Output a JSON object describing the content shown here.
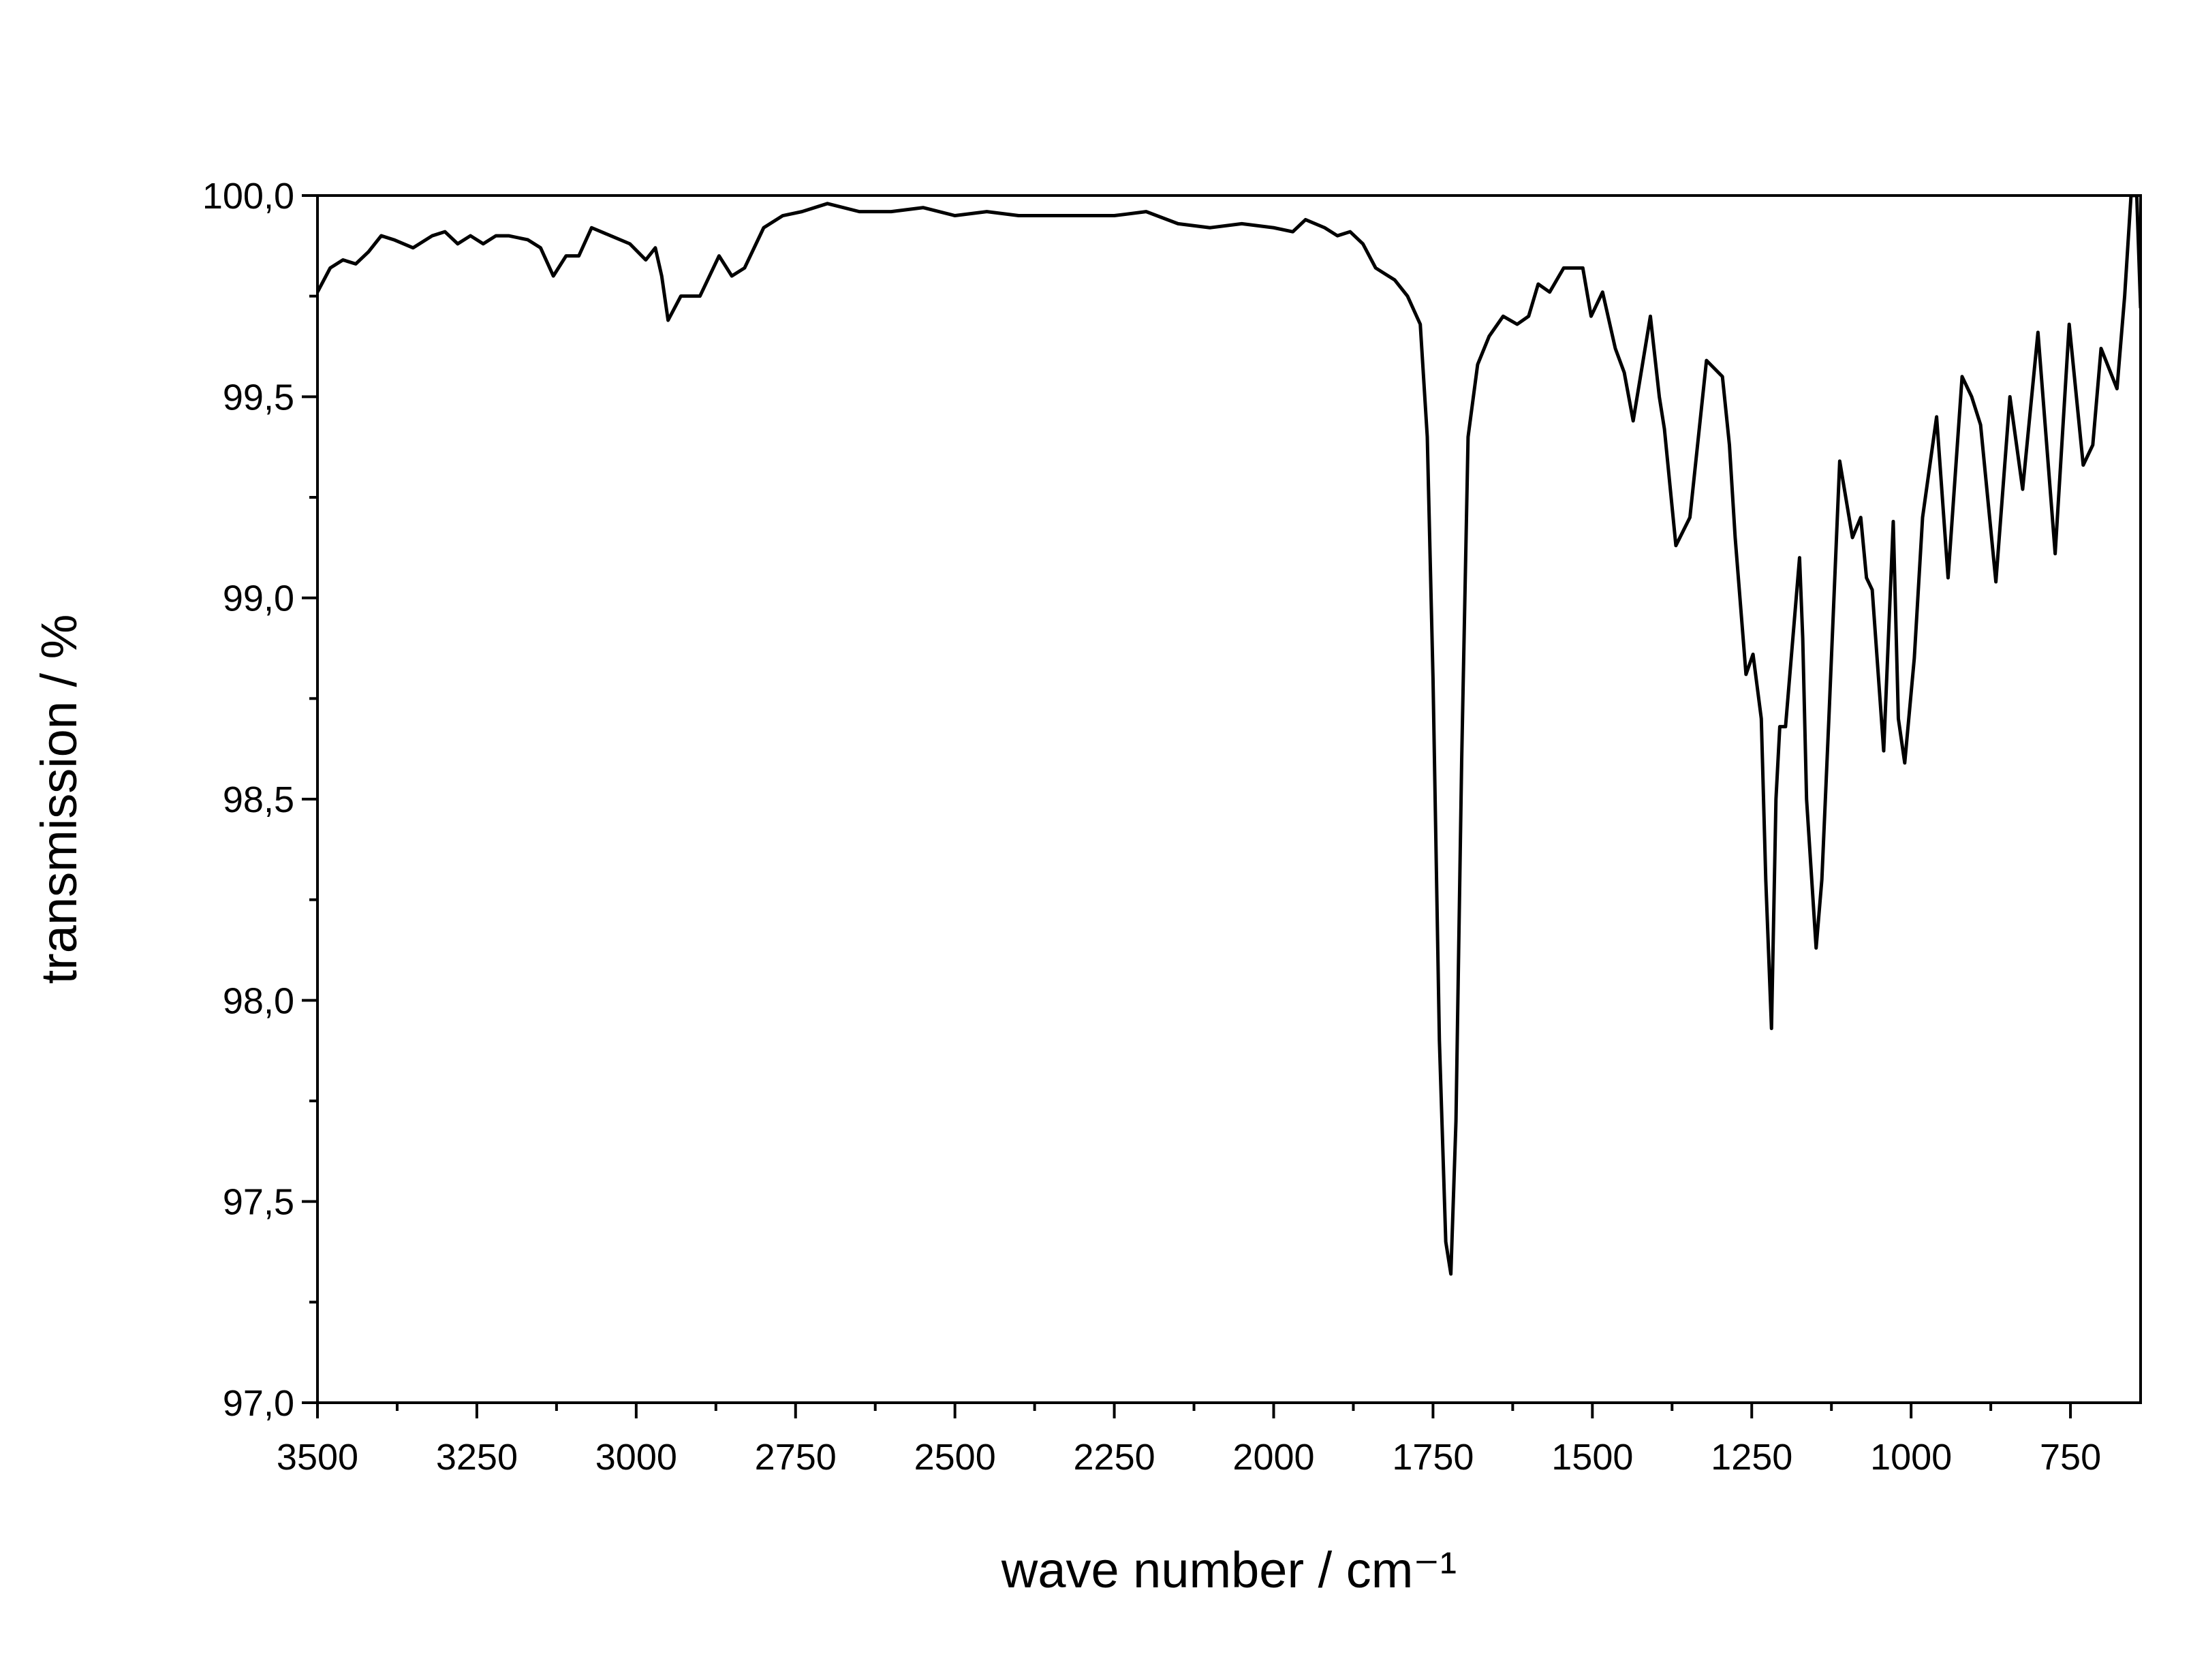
{
  "chart_data": {
    "type": "line",
    "x_label": "wave number / cm⁻¹",
    "y_label": "transmission / %",
    "xlim": [
      3500,
      640
    ],
    "ylim": [
      97,
      100
    ],
    "xticks": [
      3500,
      3250,
      3000,
      2750,
      2500,
      2250,
      2000,
      1750,
      1500,
      1250,
      1000,
      750
    ],
    "xticks_minor": [
      3375,
      3125,
      2875,
      2625,
      2375,
      2125,
      1875,
      1625,
      1375,
      1125,
      875
    ],
    "yticks": [
      {
        "value": 97,
        "label": "97,0"
      },
      {
        "value": 97.5,
        "label": "97,5"
      },
      {
        "value": 98,
        "label": "98,0"
      },
      {
        "value": 98.5,
        "label": "98,5"
      },
      {
        "value": 99,
        "label": "99,0"
      },
      {
        "value": 99.5,
        "label": "99,5"
      },
      {
        "value": 100,
        "label": "100,0"
      }
    ],
    "yticks_minor": [
      97.25,
      97.75,
      98.25,
      98.75,
      99.25,
      99.75
    ],
    "series": [
      {
        "color": "#000000",
        "x": [
          3500,
          3480,
          3460,
          3440,
          3420,
          3400,
          3380,
          3350,
          3320,
          3300,
          3280,
          3260,
          3240,
          3220,
          3200,
          3170,
          3150,
          3130,
          3110,
          3090,
          3070,
          3040,
          3010,
          2985,
          2970,
          2960,
          2950,
          2930,
          2900,
          2870,
          2850,
          2830,
          2800,
          2770,
          2740,
          2700,
          2650,
          2600,
          2550,
          2500,
          2450,
          2400,
          2350,
          2300,
          2250,
          2200,
          2150,
          2100,
          2050,
          2000,
          1970,
          1950,
          1920,
          1900,
          1880,
          1860,
          1840,
          1810,
          1790,
          1770,
          1759,
          1750,
          1740,
          1730,
          1722,
          1714,
          1705,
          1695,
          1680,
          1662,
          1640,
          1618,
          1600,
          1585,
          1567,
          1545,
          1515,
          1502,
          1484,
          1464,
          1450,
          1436,
          1409,
          1395,
          1387,
          1369,
          1347,
          1321,
          1296,
          1285,
          1276,
          1259,
          1248,
          1235,
          1228,
          1219,
          1212,
          1206,
          1197,
          1175,
          1170,
          1164,
          1149,
          1140,
          1129,
          1112,
          1092,
          1079,
          1070,
          1061,
          1043,
          1028,
          1020,
          1010,
          995,
          982,
          960,
          942,
          920,
          905,
          891,
          867,
          845,
          825,
          801,
          774,
          752,
          730,
          715,
          702,
          677,
          665,
          655,
          646,
          640
        ],
        "values": [
          99.76,
          99.82,
          99.84,
          99.83,
          99.86,
          99.9,
          99.89,
          99.87,
          99.9,
          99.91,
          99.88,
          99.9,
          99.88,
          99.9,
          99.9,
          99.89,
          99.87,
          99.8,
          99.85,
          99.85,
          99.92,
          99.9,
          99.88,
          99.84,
          99.87,
          99.8,
          99.69,
          99.75,
          99.75,
          99.85,
          99.8,
          99.82,
          99.92,
          99.95,
          99.96,
          99.98,
          99.96,
          99.96,
          99.97,
          99.95,
          99.96,
          99.95,
          99.95,
          99.95,
          99.95,
          99.96,
          99.93,
          99.92,
          99.93,
          99.92,
          99.91,
          99.94,
          99.92,
          99.9,
          99.91,
          99.88,
          99.82,
          99.79,
          99.75,
          99.68,
          99.4,
          98.8,
          97.9,
          97.4,
          97.32,
          97.7,
          98.6,
          99.4,
          99.58,
          99.65,
          99.7,
          99.68,
          99.7,
          99.78,
          99.76,
          99.82,
          99.82,
          99.7,
          99.76,
          99.62,
          99.56,
          99.44,
          99.7,
          99.5,
          99.42,
          99.13,
          99.2,
          99.59,
          99.55,
          99.38,
          99.15,
          98.81,
          98.86,
          98.7,
          98.3,
          97.93,
          98.5,
          98.68,
          98.68,
          99.1,
          98.9,
          98.5,
          98.13,
          98.3,
          98.7,
          99.34,
          99.15,
          99.2,
          99.05,
          99.02,
          98.62,
          99.19,
          98.7,
          98.59,
          98.85,
          99.2,
          99.45,
          99.05,
          99.55,
          99.5,
          99.43,
          99.04,
          99.5,
          99.27,
          99.66,
          99.11,
          99.68,
          99.33,
          99.38,
          99.62,
          99.52,
          99.75,
          100,
          100,
          99.72
        ]
      }
    ]
  }
}
